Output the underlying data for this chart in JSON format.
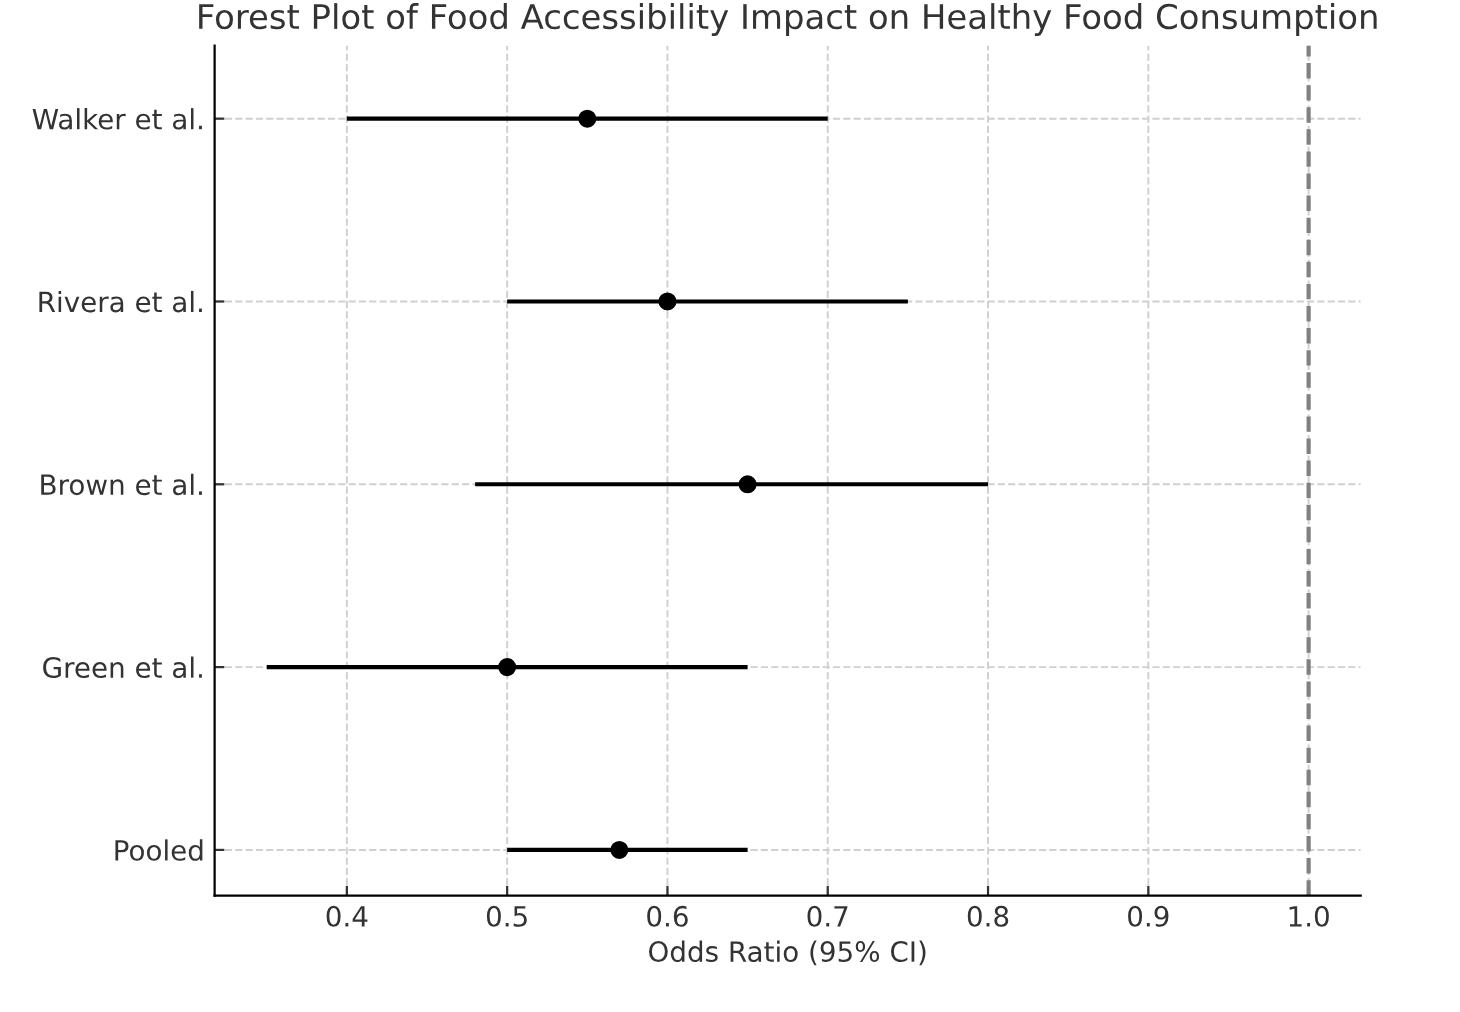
{
  "chart_data": {
    "type": "scatter",
    "orientation": "horizontal",
    "title": "Forest Plot of Food Accessibility Impact on Healthy Food Consumption",
    "xlabel": "Odds Ratio (95% CI)",
    "categories": [
      "Walker et al.",
      "Rivera et al.",
      "Brown et al.",
      "Green et al.",
      "Pooled"
    ],
    "color": "#000000",
    "values": [
      0.55,
      0.6,
      0.65,
      0.5,
      0.57
    ],
    "errors": [
      [
        0.4,
        0.7
      ],
      [
        0.5,
        0.75
      ],
      [
        0.48,
        0.8
      ],
      [
        0.35,
        0.65
      ],
      [
        0.5,
        0.65
      ]
    ],
    "xlim": [
      0.3175,
      1.0325
    ],
    "xticks": [
      0.4,
      0.5,
      0.6,
      0.7,
      0.8,
      0.9,
      {
        "value": 1.0,
        "label": "1.0"
      }
    ],
    "ref_lines": [
      {
        "axis": "x",
        "value": 1.0,
        "color": "#808080",
        "line_style": "dashed"
      }
    ],
    "grid": true,
    "marker": "circle"
  }
}
